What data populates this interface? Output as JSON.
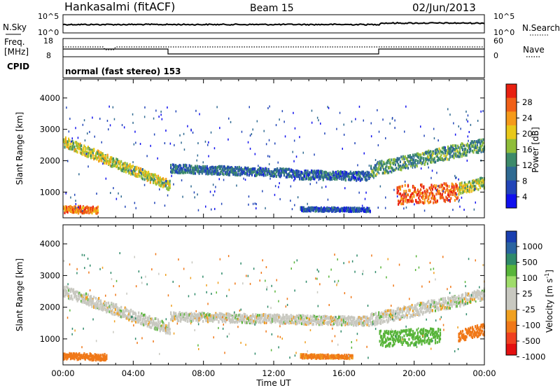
{
  "header": {
    "station": "Hankasalmi (fitACF)",
    "beam": "Beam 15",
    "date": "02/Jun/2013"
  },
  "noise_panel": {
    "left_label": "N.Sky",
    "right_label": "N.Search",
    "left_ticks": [
      "10^5",
      "10^0"
    ],
    "right_ticks": [
      "10^5",
      "10^0"
    ]
  },
  "freq_panel": {
    "left_label_1": "Freq.",
    "left_label_2": "[MHz]",
    "left_ticks": [
      "18",
      "8"
    ],
    "right_label": "Nave",
    "right_ticks": [
      "60",
      "0"
    ]
  },
  "cpid_panel": {
    "label": "CPID",
    "text": "normal (fast stereo) 153"
  },
  "xlabel": "Time UT",
  "x_ticks": [
    "00:00",
    "04:00",
    "08:00",
    "12:00",
    "16:00",
    "20:00",
    "00:00"
  ],
  "power_colorbar": {
    "label": "Power [dB]",
    "ticks": [
      "28",
      "24",
      "20",
      "16",
      "12",
      "8",
      "4"
    ],
    "colors": [
      "#1010ee",
      "#2245b8",
      "#2f6a92",
      "#3d8a6a",
      "#8fbd3a",
      "#e8c81a",
      "#f59a1a",
      "#f06018",
      "#e82010"
    ]
  },
  "velocity_colorbar": {
    "label": "Velocity [m s",
    "label_sup": "-1",
    "label_end": "]",
    "ticks": [
      "1000",
      "500",
      "100",
      "25",
      "-25",
      "-100",
      "-500",
      "-1000"
    ],
    "colors": [
      "#1a3fb0",
      "#2a64a0",
      "#2f8a6a",
      "#58b53a",
      "#9fdc6a",
      "#c8c8c0",
      "#c8c8c0",
      "#f0a020",
      "#f07818",
      "#f04020",
      "#e41010"
    ]
  },
  "chart_data": [
    {
      "type": "heatmap",
      "title": "",
      "xlabel": "",
      "ylabel": "Slant Range [km]",
      "x_range_hours": [
        0,
        24
      ],
      "ylim": [
        180,
        4600
      ],
      "y_ticks": [
        1000,
        2000,
        3000,
        4000
      ],
      "colorbar": "Power [dB]",
      "bands": [
        {
          "t_start": 0.0,
          "t_end": 6.1,
          "range_start": 2600,
          "range_end": 1200,
          "width_km": 320,
          "value_db": 18
        },
        {
          "t_start": 6.1,
          "t_end": 13.0,
          "range_start": 1750,
          "range_end": 1600,
          "width_km": 260,
          "value_db": 10
        },
        {
          "t_start": 13.0,
          "t_end": 17.5,
          "range_start": 1550,
          "range_end": 1500,
          "width_km": 280,
          "value_db": 9
        },
        {
          "t_start": 17.5,
          "t_end": 24.0,
          "range_start": 1700,
          "range_end": 2500,
          "width_km": 420,
          "value_db": 14
        },
        {
          "t_start": 0.0,
          "t_end": 2.0,
          "range_start": 450,
          "range_end": 420,
          "width_km": 220,
          "value_db": 26
        },
        {
          "t_start": 19.0,
          "t_end": 22.5,
          "range_start": 900,
          "range_end": 1000,
          "width_km": 600,
          "value_db": 27
        },
        {
          "t_start": 22.5,
          "t_end": 24.0,
          "range_start": 1100,
          "range_end": 1300,
          "width_km": 350,
          "value_db": 18
        },
        {
          "t_start": 13.5,
          "t_end": 17.5,
          "range_start": 450,
          "range_end": 430,
          "width_km": 120,
          "value_db": 8
        }
      ]
    },
    {
      "type": "heatmap",
      "title": "",
      "xlabel": "Time UT",
      "ylabel": "Slant Range [km]",
      "x_range_hours": [
        0,
        24
      ],
      "ylim": [
        180,
        4600
      ],
      "y_ticks": [
        1000,
        2000,
        3000,
        4000
      ],
      "colorbar": "Velocity [m s-1]",
      "bands": [
        {
          "t_start": 0.0,
          "t_end": 6.1,
          "range_start": 2500,
          "range_end": 1300,
          "width_km": 350,
          "value_ms": 0
        },
        {
          "t_start": 6.1,
          "t_end": 17.5,
          "range_start": 1700,
          "range_end": 1550,
          "width_km": 280,
          "value_ms": 0
        },
        {
          "t_start": 17.5,
          "t_end": 24.0,
          "range_start": 1600,
          "range_end": 2400,
          "width_km": 380,
          "value_ms": 0
        },
        {
          "t_start": 0.0,
          "t_end": 2.5,
          "range_start": 450,
          "range_end": 420,
          "width_km": 200,
          "value_ms": -300
        },
        {
          "t_start": 18.0,
          "t_end": 21.5,
          "range_start": 1000,
          "range_end": 1100,
          "width_km": 500,
          "value_ms": 60
        },
        {
          "t_start": 22.5,
          "t_end": 24.0,
          "range_start": 1100,
          "range_end": 1300,
          "width_km": 350,
          "value_ms": -400
        },
        {
          "t_start": 13.5,
          "t_end": 16.5,
          "range_start": 450,
          "range_end": 430,
          "width_km": 120,
          "value_ms": -120
        }
      ]
    }
  ]
}
